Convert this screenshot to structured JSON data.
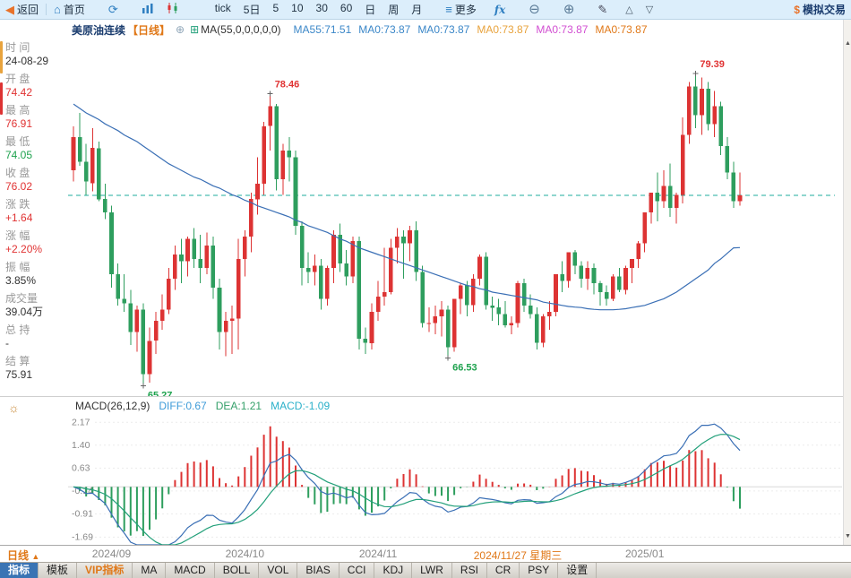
{
  "toolbar": {
    "back_label": "返回",
    "home_label": "首页",
    "more_label": "更多",
    "fx_label": "fx",
    "sim_label": "模拟交易",
    "periods": [
      "tick",
      "5日",
      "5",
      "10",
      "30",
      "60",
      "日",
      "周",
      "月"
    ]
  },
  "icons": {
    "back": "◀",
    "home": "⌂",
    "refresh": "⟳",
    "menu": "≡",
    "zoom_out": "⊖",
    "zoom_in": "⊕",
    "pen": "✎",
    "panel_up": "△",
    "panel_down": "▽",
    "dollar": "$",
    "sun": "☼",
    "add": "⊕",
    "grid": "⊞",
    "scroll_up": "▲",
    "scroll_down": "▼",
    "dropdown_up": "▲"
  },
  "chart_header": {
    "symbol": "美原油连续",
    "period_tag": "【日线】",
    "ma_param": "MA(55,0,0,0,0,0)",
    "ma_values": [
      {
        "label": "MA55:71.51",
        "color": "#3b87c8"
      },
      {
        "label": "MA0:73.87",
        "color": "#3b87c8"
      },
      {
        "label": "MA0:73.87",
        "color": "#3b87c8"
      },
      {
        "label": "MA0:73.87",
        "color": "#e8a33d"
      },
      {
        "label": "MA0:73.87",
        "color": "#d24fd2"
      },
      {
        "label": "MA0:73.87",
        "color": "#e07818"
      }
    ]
  },
  "sidebar": {
    "rows": [
      {
        "label": "时 间",
        "value": "24-08-29",
        "color": "#333333"
      },
      {
        "label": "开 盘",
        "value": "74.42",
        "color": "#e03333"
      },
      {
        "label": "最 高",
        "value": "76.91",
        "color": "#e03333"
      },
      {
        "label": "最 低",
        "value": "74.05",
        "color": "#1ea24e"
      },
      {
        "label": "收 盘",
        "value": "76.02",
        "color": "#e03333"
      },
      {
        "label": "涨 跌",
        "value": "+1.64",
        "color": "#e03333"
      },
      {
        "label": "涨 幅",
        "value": "+2.20%",
        "color": "#e03333"
      },
      {
        "label": "振 幅",
        "value": "3.85%",
        "color": "#333333"
      },
      {
        "label": "成交量",
        "value": "39.04万",
        "color": "#333333"
      },
      {
        "label": "总 持",
        "value": "-",
        "color": "#333333"
      },
      {
        "label": "结 算",
        "value": "75.91",
        "color": "#333333"
      }
    ]
  },
  "macd_header": {
    "params": "MACD(26,12,9)",
    "diff": "DIFF:0.67",
    "dea": "DEA:1.21",
    "macd": "MACD:-1.09",
    "diff_color": "#3e9bd8",
    "dea_color": "#35a06a",
    "macd_color": "#2ab0c9"
  },
  "bottom": {
    "period_label": "日线"
  },
  "bottom_tabs": [
    {
      "label": "指标",
      "selected": true
    },
    {
      "label": "模板"
    },
    {
      "label": "VIP指标",
      "vip": true
    },
    {
      "label": "MA"
    },
    {
      "label": "MACD"
    },
    {
      "label": "BOLL"
    },
    {
      "label": "VOL"
    },
    {
      "label": "BIAS"
    },
    {
      "label": "CCI"
    },
    {
      "label": "KDJ"
    },
    {
      "label": "LWR"
    },
    {
      "label": "RSI"
    },
    {
      "label": "CR"
    },
    {
      "label": "PSY"
    },
    {
      "label": "设置"
    }
  ],
  "chart_data": {
    "type": "candlestick",
    "title": "美原油连续 日线",
    "price_axis": {
      "min": 64.8,
      "max": 81.0
    },
    "last_close_line": 73.87,
    "up_color": "#dd3333",
    "down_color": "#2e9e5e",
    "ma_color": "#3a6fb5",
    "last_line_color": "#1fae9e",
    "annotations": [
      {
        "index": 31,
        "price": 78.46,
        "text": "78.46",
        "position": "above",
        "color": "#e03333"
      },
      {
        "index": 98,
        "price": 79.39,
        "text": "79.39",
        "position": "above",
        "color": "#e03333"
      },
      {
        "index": 11,
        "price": 65.27,
        "text": "65.27",
        "position": "below",
        "color": "#1ea24e"
      },
      {
        "index": 59,
        "price": 66.53,
        "text": "66.53",
        "position": "below",
        "color": "#1ea24e"
      }
    ],
    "x_labels": [
      {
        "index": 6,
        "text": "2024/09"
      },
      {
        "index": 27,
        "text": "2024/10"
      },
      {
        "index": 48,
        "text": "2024/11"
      },
      {
        "index": 70,
        "text": "2024/11/27 星期三",
        "highlight": true
      },
      {
        "index": 90,
        "text": "2025/01"
      }
    ],
    "candles": [
      [
        75.0,
        77.0,
        74.5,
        76.5
      ],
      [
        76.5,
        77.6,
        75.2,
        75.4
      ],
      [
        75.4,
        76.2,
        73.9,
        74.5
      ],
      [
        74.42,
        76.91,
        74.05,
        76.02
      ],
      [
        76.0,
        76.3,
        73.6,
        73.7
      ],
      [
        73.7,
        74.4,
        72.8,
        73.1
      ],
      [
        73.1,
        73.4,
        69.7,
        70.3
      ],
      [
        70.3,
        70.8,
        68.9,
        69.2
      ],
      [
        69.2,
        70.3,
        68.6,
        69.0
      ],
      [
        69.0,
        69.6,
        67.1,
        67.7
      ],
      [
        67.7,
        68.9,
        66.8,
        68.7
      ],
      [
        68.7,
        69.0,
        65.27,
        65.8
      ],
      [
        65.8,
        67.9,
        65.4,
        67.3
      ],
      [
        67.3,
        68.6,
        66.7,
        68.2
      ],
      [
        68.2,
        69.4,
        67.8,
        68.7
      ],
      [
        68.7,
        70.6,
        68.5,
        70.1
      ],
      [
        70.1,
        71.6,
        69.6,
        71.2
      ],
      [
        71.2,
        71.9,
        69.9,
        70.9
      ],
      [
        70.9,
        72.0,
        70.2,
        71.9
      ],
      [
        71.9,
        72.4,
        70.6,
        71.0
      ],
      [
        71.0,
        72.1,
        69.9,
        70.6
      ],
      [
        70.6,
        72.2,
        70.3,
        71.6
      ],
      [
        71.6,
        72.0,
        69.2,
        69.7
      ],
      [
        69.7,
        70.1,
        66.9,
        67.7
      ],
      [
        67.7,
        68.6,
        66.6,
        68.2
      ],
      [
        68.2,
        68.9,
        66.7,
        68.3
      ],
      [
        68.3,
        71.9,
        66.9,
        71.0
      ],
      [
        71.0,
        72.3,
        70.2,
        72.0
      ],
      [
        72.0,
        74.0,
        71.3,
        73.7
      ],
      [
        73.7,
        75.6,
        73.0,
        74.4
      ],
      [
        74.4,
        77.2,
        73.9,
        77.0
      ],
      [
        77.0,
        78.46,
        75.9,
        77.9
      ],
      [
        77.9,
        78.0,
        74.1,
        74.6
      ],
      [
        74.6,
        76.2,
        73.9,
        75.9
      ],
      [
        75.9,
        76.5,
        74.5,
        75.6
      ],
      [
        75.6,
        75.9,
        72.1,
        72.5
      ],
      [
        72.5,
        72.7,
        69.8,
        70.6
      ],
      [
        70.6,
        71.3,
        69.9,
        70.4
      ],
      [
        70.4,
        71.2,
        69.8,
        70.7
      ],
      [
        70.7,
        71.0,
        68.7,
        69.2
      ],
      [
        69.2,
        70.7,
        68.9,
        70.6
      ],
      [
        70.6,
        72.3,
        69.9,
        72.1
      ],
      [
        72.1,
        72.6,
        70.4,
        70.8
      ],
      [
        70.8,
        71.4,
        69.8,
        70.2
      ],
      [
        70.2,
        72.0,
        69.9,
        71.8
      ],
      [
        71.8,
        72.0,
        66.9,
        67.4
      ],
      [
        67.4,
        67.9,
        66.7,
        67.2
      ],
      [
        67.2,
        69.0,
        66.9,
        68.6
      ],
      [
        68.6,
        70.0,
        68.2,
        69.3
      ],
      [
        69.3,
        71.5,
        68.9,
        69.5
      ],
      [
        69.5,
        71.9,
        69.4,
        71.5
      ],
      [
        71.5,
        72.4,
        70.8,
        72.0
      ],
      [
        72.0,
        72.3,
        70.1,
        71.7
      ],
      [
        71.7,
        72.5,
        70.9,
        72.3
      ],
      [
        72.3,
        72.7,
        70.0,
        70.4
      ],
      [
        70.4,
        70.7,
        67.9,
        68.1
      ],
      [
        68.1,
        68.8,
        67.7,
        68.1
      ],
      [
        68.1,
        68.9,
        67.6,
        68.4
      ],
      [
        68.4,
        69.1,
        67.5,
        68.7
      ],
      [
        68.7,
        68.9,
        66.53,
        67.0
      ],
      [
        67.0,
        69.2,
        66.8,
        69.2
      ],
      [
        69.2,
        69.9,
        68.5,
        69.8
      ],
      [
        69.8,
        70.0,
        68.4,
        68.9
      ],
      [
        68.9,
        70.3,
        68.6,
        70.1
      ],
      [
        70.1,
        71.2,
        69.8,
        71.1
      ],
      [
        71.1,
        71.3,
        68.7,
        68.9
      ],
      [
        68.9,
        69.3,
        68.2,
        68.8
      ],
      [
        68.8,
        69.2,
        68.0,
        68.5
      ],
      [
        68.5,
        69.1,
        67.9,
        68.0
      ],
      [
        68.0,
        68.4,
        67.6,
        68.1
      ],
      [
        68.1,
        70.0,
        67.9,
        69.9
      ],
      [
        69.9,
        70.1,
        68.6,
        68.9
      ],
      [
        68.9,
        69.4,
        68.3,
        68.5
      ],
      [
        68.5,
        68.8,
        66.9,
        67.2
      ],
      [
        67.2,
        68.5,
        67.0,
        68.4
      ],
      [
        68.4,
        69.1,
        67.8,
        68.6
      ],
      [
        68.6,
        70.3,
        68.4,
        70.3
      ],
      [
        70.3,
        70.9,
        69.5,
        70.0
      ],
      [
        70.0,
        71.3,
        69.7,
        71.3
      ],
      [
        71.3,
        71.4,
        70.3,
        70.7
      ],
      [
        70.7,
        70.9,
        69.7,
        70.1
      ],
      [
        70.1,
        70.9,
        69.6,
        70.6
      ],
      [
        70.6,
        70.8,
        69.4,
        69.9
      ],
      [
        69.9,
        70.0,
        68.9,
        69.5
      ],
      [
        69.5,
        69.8,
        68.9,
        69.2
      ],
      [
        69.2,
        70.3,
        69.1,
        70.2
      ],
      [
        70.2,
        70.6,
        69.5,
        69.6
      ],
      [
        69.6,
        70.7,
        69.4,
        70.6
      ],
      [
        70.6,
        71.0,
        69.9,
        71.0
      ],
      [
        71.0,
        71.8,
        70.6,
        71.7
      ],
      [
        71.7,
        73.0,
        71.3,
        73.1
      ],
      [
        73.1,
        74.0,
        72.6,
        74.0
      ],
      [
        74.0,
        74.9,
        72.7,
        73.6
      ],
      [
        73.6,
        75.0,
        73.3,
        74.3
      ],
      [
        74.3,
        75.3,
        72.9,
        73.3
      ],
      [
        73.3,
        74.0,
        72.6,
        73.9
      ],
      [
        73.9,
        77.4,
        73.5,
        76.6
      ],
      [
        76.6,
        79.0,
        76.2,
        78.8
      ],
      [
        78.8,
        79.39,
        76.9,
        77.5
      ],
      [
        77.5,
        79.2,
        76.6,
        78.7
      ],
      [
        78.7,
        79.0,
        76.8,
        77.1
      ],
      [
        77.1,
        78.6,
        76.5,
        77.9
      ],
      [
        77.9,
        78.1,
        75.7,
        76.1
      ],
      [
        76.1,
        76.5,
        74.6,
        74.9
      ],
      [
        74.9,
        75.4,
        73.3,
        73.6
      ],
      [
        73.6,
        74.9,
        73.4,
        73.87
      ]
    ],
    "ma55": [
      78.0,
      77.8,
      77.6,
      77.45,
      77.3,
      77.1,
      76.95,
      76.8,
      76.6,
      76.45,
      76.3,
      76.1,
      75.9,
      75.7,
      75.5,
      75.3,
      75.15,
      75.0,
      74.85,
      74.7,
      74.6,
      74.45,
      74.3,
      74.2,
      74.05,
      73.9,
      73.8,
      73.65,
      73.55,
      73.4,
      73.3,
      73.2,
      73.1,
      73.0,
      72.9,
      72.75,
      72.65,
      72.5,
      72.4,
      72.3,
      72.2,
      72.05,
      71.9,
      71.8,
      71.65,
      71.5,
      71.4,
      71.3,
      71.2,
      71.1,
      71.0,
      70.9,
      70.8,
      70.7,
      70.6,
      70.5,
      70.4,
      70.3,
      70.2,
      70.1,
      70.0,
      69.9,
      69.8,
      69.75,
      69.65,
      69.6,
      69.5,
      69.45,
      69.4,
      69.35,
      69.3,
      69.25,
      69.2,
      69.15,
      69.05,
      69.0,
      68.95,
      68.9,
      68.85,
      68.82,
      68.8,
      68.75,
      68.72,
      68.7,
      68.7,
      68.7,
      68.72,
      68.75,
      68.8,
      68.85,
      68.9,
      69.0,
      69.1,
      69.2,
      69.35,
      69.5,
      69.7,
      69.9,
      70.1,
      70.3,
      70.5,
      70.8,
      71.0,
      71.25,
      71.5,
      71.51
    ],
    "macd_panel": {
      "params": "MACD(26,12,9)",
      "diff": 0.67,
      "dea": 1.21,
      "macd": -1.09,
      "y_ticks": [
        "2.17",
        "1.40",
        "0.63",
        "-0.14",
        "-0.91",
        "-1.69"
      ],
      "value_range": [
        -1.95,
        2.45
      ]
    }
  }
}
